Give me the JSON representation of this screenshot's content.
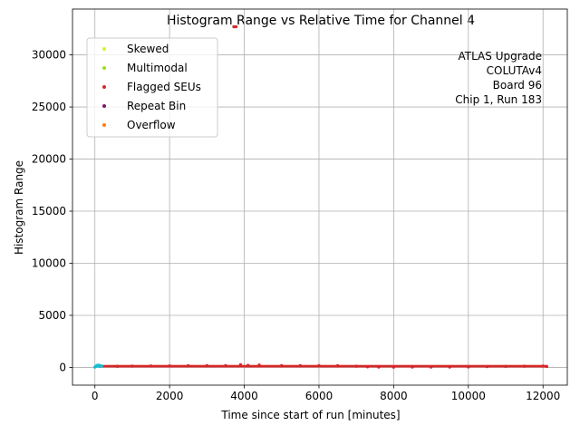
{
  "chart_data": {
    "type": "scatter",
    "title": "Histogram Range vs Relative Time for Channel 4",
    "xlabel": "Time since start of run [minutes]",
    "ylabel": "Histogram Range",
    "xlim": [
      -600,
      12650
    ],
    "ylim": [
      -1700,
      34400
    ],
    "xticks": [
      0,
      2000,
      4000,
      6000,
      8000,
      10000,
      12000
    ],
    "xtick_labels": [
      "0",
      "2000",
      "4000",
      "6000",
      "8000",
      "10000",
      "12000"
    ],
    "yticks": [
      0,
      5000,
      10000,
      15000,
      20000,
      25000,
      30000
    ],
    "ytick_labels": [
      "0",
      "5000",
      "10000",
      "15000",
      "20000",
      "25000",
      "30000"
    ],
    "grid": true,
    "legend_position": "upper-left",
    "annotation": [
      "ATLAS Upgrade",
      "COLUTAv4",
      "Board 96",
      "Chip 1, Run 183"
    ],
    "series": [
      {
        "name": "Skewed",
        "color": "#dcf02c",
        "points": []
      },
      {
        "name": "Multimodal",
        "color": "#9de21d",
        "points": []
      },
      {
        "name": "Flagged SEUs",
        "color": "#d62728",
        "points": [
          [
            150,
            120
          ],
          [
            600,
            110
          ],
          [
            1000,
            130
          ],
          [
            1500,
            140
          ],
          [
            2000,
            150
          ],
          [
            2500,
            160
          ],
          [
            3000,
            170
          ],
          [
            3500,
            170
          ],
          [
            3720,
            32700
          ],
          [
            3780,
            32700
          ],
          [
            3900,
            260
          ],
          [
            4100,
            200
          ],
          [
            4400,
            230
          ],
          [
            5000,
            170
          ],
          [
            5500,
            170
          ],
          [
            6000,
            170
          ],
          [
            6500,
            160
          ],
          [
            7000,
            120
          ],
          [
            7300,
            60
          ],
          [
            7600,
            40
          ],
          [
            8000,
            30
          ],
          [
            8500,
            40
          ],
          [
            9000,
            40
          ],
          [
            9500,
            40
          ],
          [
            10000,
            50
          ],
          [
            10500,
            80
          ],
          [
            11000,
            100
          ],
          [
            11500,
            120
          ],
          [
            12000,
            130
          ],
          [
            12100,
            90
          ]
        ],
        "band": {
          "x_from": 150,
          "x_to": 12100,
          "low": 0,
          "high": 240
        }
      },
      {
        "name": "Repeat Bin",
        "color": "#7b1a6a",
        "points": []
      },
      {
        "name": "Overflow",
        "color": "#ff7f0e",
        "points": []
      },
      {
        "name": "",
        "color": "#17becf",
        "points": [
          [
            0,
            30
          ],
          [
            20,
            80
          ],
          [
            40,
            140
          ],
          [
            60,
            200
          ],
          [
            80,
            160
          ],
          [
            100,
            220
          ],
          [
            120,
            100
          ],
          [
            150,
            180
          ],
          [
            180,
            120
          ]
        ]
      }
    ]
  }
}
